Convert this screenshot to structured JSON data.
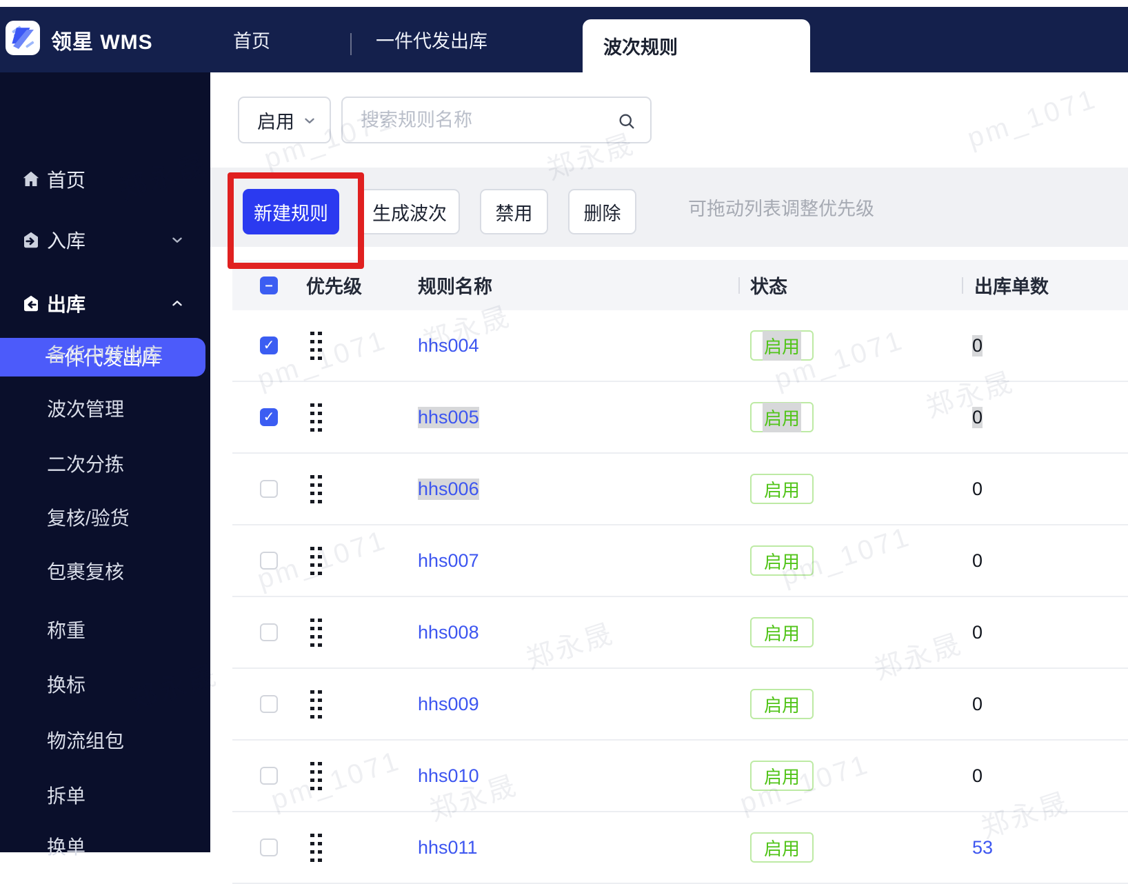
{
  "brand": {
    "name": "领星 WMS",
    "logo_icon": "lingxing-x-logo"
  },
  "topnav": {
    "tabs": [
      {
        "label": "首页",
        "active": false
      },
      {
        "label": "一件代发出库",
        "active": false
      },
      {
        "label": "波次规则",
        "active": true
      }
    ]
  },
  "sidebar": {
    "top_items": [
      {
        "label": "首页",
        "icon": "home-icon",
        "chevron": null
      },
      {
        "label": "入库",
        "icon": "inbound-box-icon",
        "chevron": "down"
      },
      {
        "label": "出库",
        "icon": "outbound-box-icon",
        "chevron": "up"
      }
    ],
    "active_item": "一件代发出库",
    "sub_items": [
      "备货中转出库",
      "波次管理",
      "二次分拣",
      "复核/验货",
      "包裹复核",
      "称重",
      "换标",
      "物流组包",
      "拆单",
      "换单"
    ]
  },
  "filters": {
    "status_filter_value": "启用",
    "search_placeholder": "搜索规则名称"
  },
  "toolbar": {
    "primary_button": "新建规则",
    "buttons": [
      "生成波次",
      "禁用",
      "删除"
    ],
    "hint": "可拖动列表调整优先级"
  },
  "annotation": {
    "shape": "red-box",
    "around": "新建规则"
  },
  "table": {
    "columns": [
      "优先级",
      "规则名称",
      "状态",
      "出库单数"
    ],
    "header_checkbox": "indeterminate",
    "rows": [
      {
        "name": "hhs004",
        "checked": true,
        "status": "启用",
        "count": "0",
        "name_selected": false,
        "status_selected": true,
        "count_selected": true,
        "count_link": false
      },
      {
        "name": "hhs005",
        "checked": true,
        "status": "启用",
        "count": "0",
        "name_selected": true,
        "status_selected": true,
        "count_selected": true,
        "count_link": false
      },
      {
        "name": "hhs006",
        "checked": false,
        "status": "启用",
        "count": "0",
        "name_selected": true,
        "status_selected": false,
        "count_selected": false,
        "count_link": false
      },
      {
        "name": "hhs007",
        "checked": false,
        "status": "启用",
        "count": "0",
        "name_selected": false,
        "status_selected": false,
        "count_selected": false,
        "count_link": false
      },
      {
        "name": "hhs008",
        "checked": false,
        "status": "启用",
        "count": "0",
        "name_selected": false,
        "status_selected": false,
        "count_selected": false,
        "count_link": false
      },
      {
        "name": "hhs009",
        "checked": false,
        "status": "启用",
        "count": "0",
        "name_selected": false,
        "status_selected": false,
        "count_selected": false,
        "count_link": false
      },
      {
        "name": "hhs010",
        "checked": false,
        "status": "启用",
        "count": "0",
        "name_selected": false,
        "status_selected": false,
        "count_selected": false,
        "count_link": false
      },
      {
        "name": "hhs011",
        "checked": false,
        "status": "启用",
        "count": "53",
        "name_selected": false,
        "status_selected": false,
        "count_selected": false,
        "count_link": true
      }
    ]
  },
  "watermark": {
    "texts": [
      "pm_1071",
      "郑永晟"
    ]
  },
  "colors": {
    "topbar_navy": "#14204c",
    "sidebar_navy": "#0a0f2b",
    "sidebar_active_blue": "#4c5bfa",
    "primary_button_blue": "#2b3af0",
    "link_blue": "#3d56f0",
    "status_green": "#52c41a",
    "annotation_red": "#e02020"
  }
}
